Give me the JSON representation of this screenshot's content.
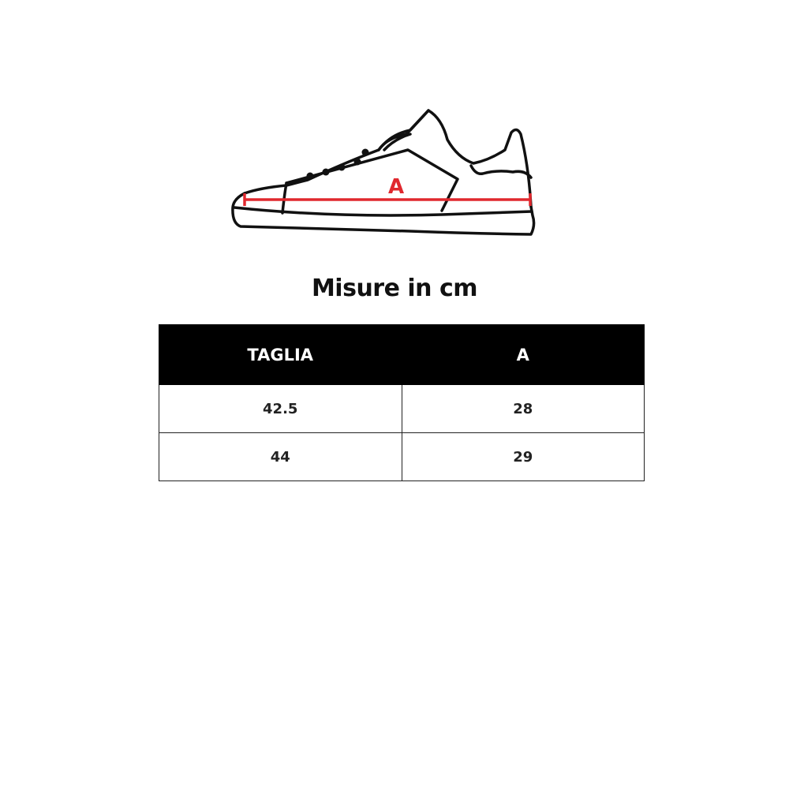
{
  "diagram": {
    "measure_label": "A",
    "measure_color": "#e0282e",
    "icon": "sneaker-outline"
  },
  "title": "Misure in cm",
  "table": {
    "headers": [
      "TAGLIA",
      "A"
    ],
    "rows": [
      [
        "42.5",
        "28"
      ],
      [
        "44",
        "29"
      ]
    ]
  }
}
